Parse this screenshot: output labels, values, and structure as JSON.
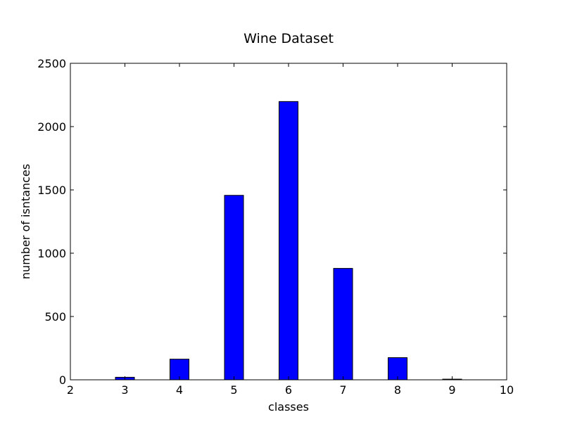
{
  "chart_data": {
    "type": "bar",
    "title": "Wine Dataset",
    "xlabel": "classes",
    "ylabel": "number of isntances",
    "x": [
      3,
      4,
      5,
      6,
      7,
      8,
      9
    ],
    "values": [
      20,
      163,
      1457,
      2198,
      880,
      175,
      5
    ],
    "xlim": [
      2,
      10
    ],
    "ylim": [
      0,
      2500
    ],
    "xticks": [
      "2",
      "3",
      "4",
      "5",
      "6",
      "7",
      "8",
      "9",
      "10"
    ],
    "yticks": [
      "0",
      "500",
      "1000",
      "1500",
      "2000",
      "2500"
    ],
    "bar_color": "#0000ff",
    "edge_color": "#000000",
    "grid": false
  }
}
